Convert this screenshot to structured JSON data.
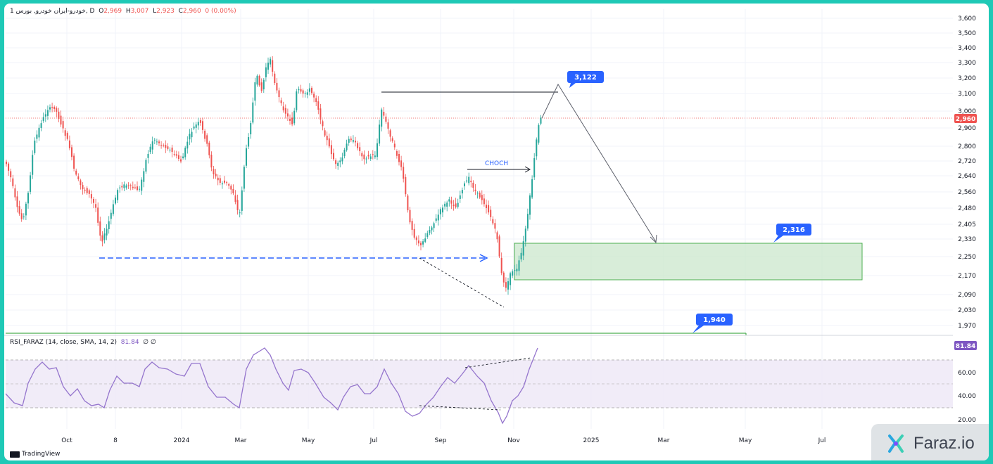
{
  "header": {
    "symbol": "1 خودرو-ایران خودرو, بورس, D",
    "o_label": "O",
    "o": "2,969",
    "h_label": "H",
    "h": "3,007",
    "l_label": "L",
    "l": "2,923",
    "c_label": "C",
    "c": "2,960",
    "change": "0 (0.00%)"
  },
  "rsi_header": {
    "name": "RSI_FARAZ (14, close, SMA, 14, 2)",
    "value": "81.84",
    "extra": "∅ ∅"
  },
  "branding": {
    "tradingview": "TradingView",
    "faraz": "Faraz.io"
  },
  "colors": {
    "up": "#26a69a",
    "down": "#ef5350",
    "blue": "#2962ff",
    "rsi": "#9575cd",
    "zone": "#4caf50",
    "zone_fill": "#c8e6c9",
    "frame": "#1fc9b6"
  },
  "chart_data": {
    "type": "candlestick",
    "price_axis": {
      "ticks": [
        "3,600",
        "3,500",
        "3,400",
        "3,300",
        "3,200",
        "3,100",
        "3,000",
        "2,900",
        "2,800",
        "2,720",
        "2,640",
        "2,560",
        "2,480",
        "2,405",
        "2,330",
        "2,250",
        "2,170",
        "2,090",
        "2,030",
        "1,970"
      ],
      "current_price": "2,960"
    },
    "time_axis": [
      "Oct",
      "8",
      "2024",
      "Mar",
      "May",
      "Jul",
      "Sep",
      "Nov",
      "2025",
      "Mar",
      "May",
      "Jul"
    ],
    "annotations": {
      "choch": "CHOCH",
      "target_high": "3,122",
      "zone_top": "2,316",
      "support": "1,940"
    },
    "rsi": {
      "ticks": [
        "60.00",
        "40.00",
        "20.00"
      ],
      "upper_band": 70,
      "mid_band": 50,
      "lower_band": 30,
      "current": "81.84"
    }
  }
}
